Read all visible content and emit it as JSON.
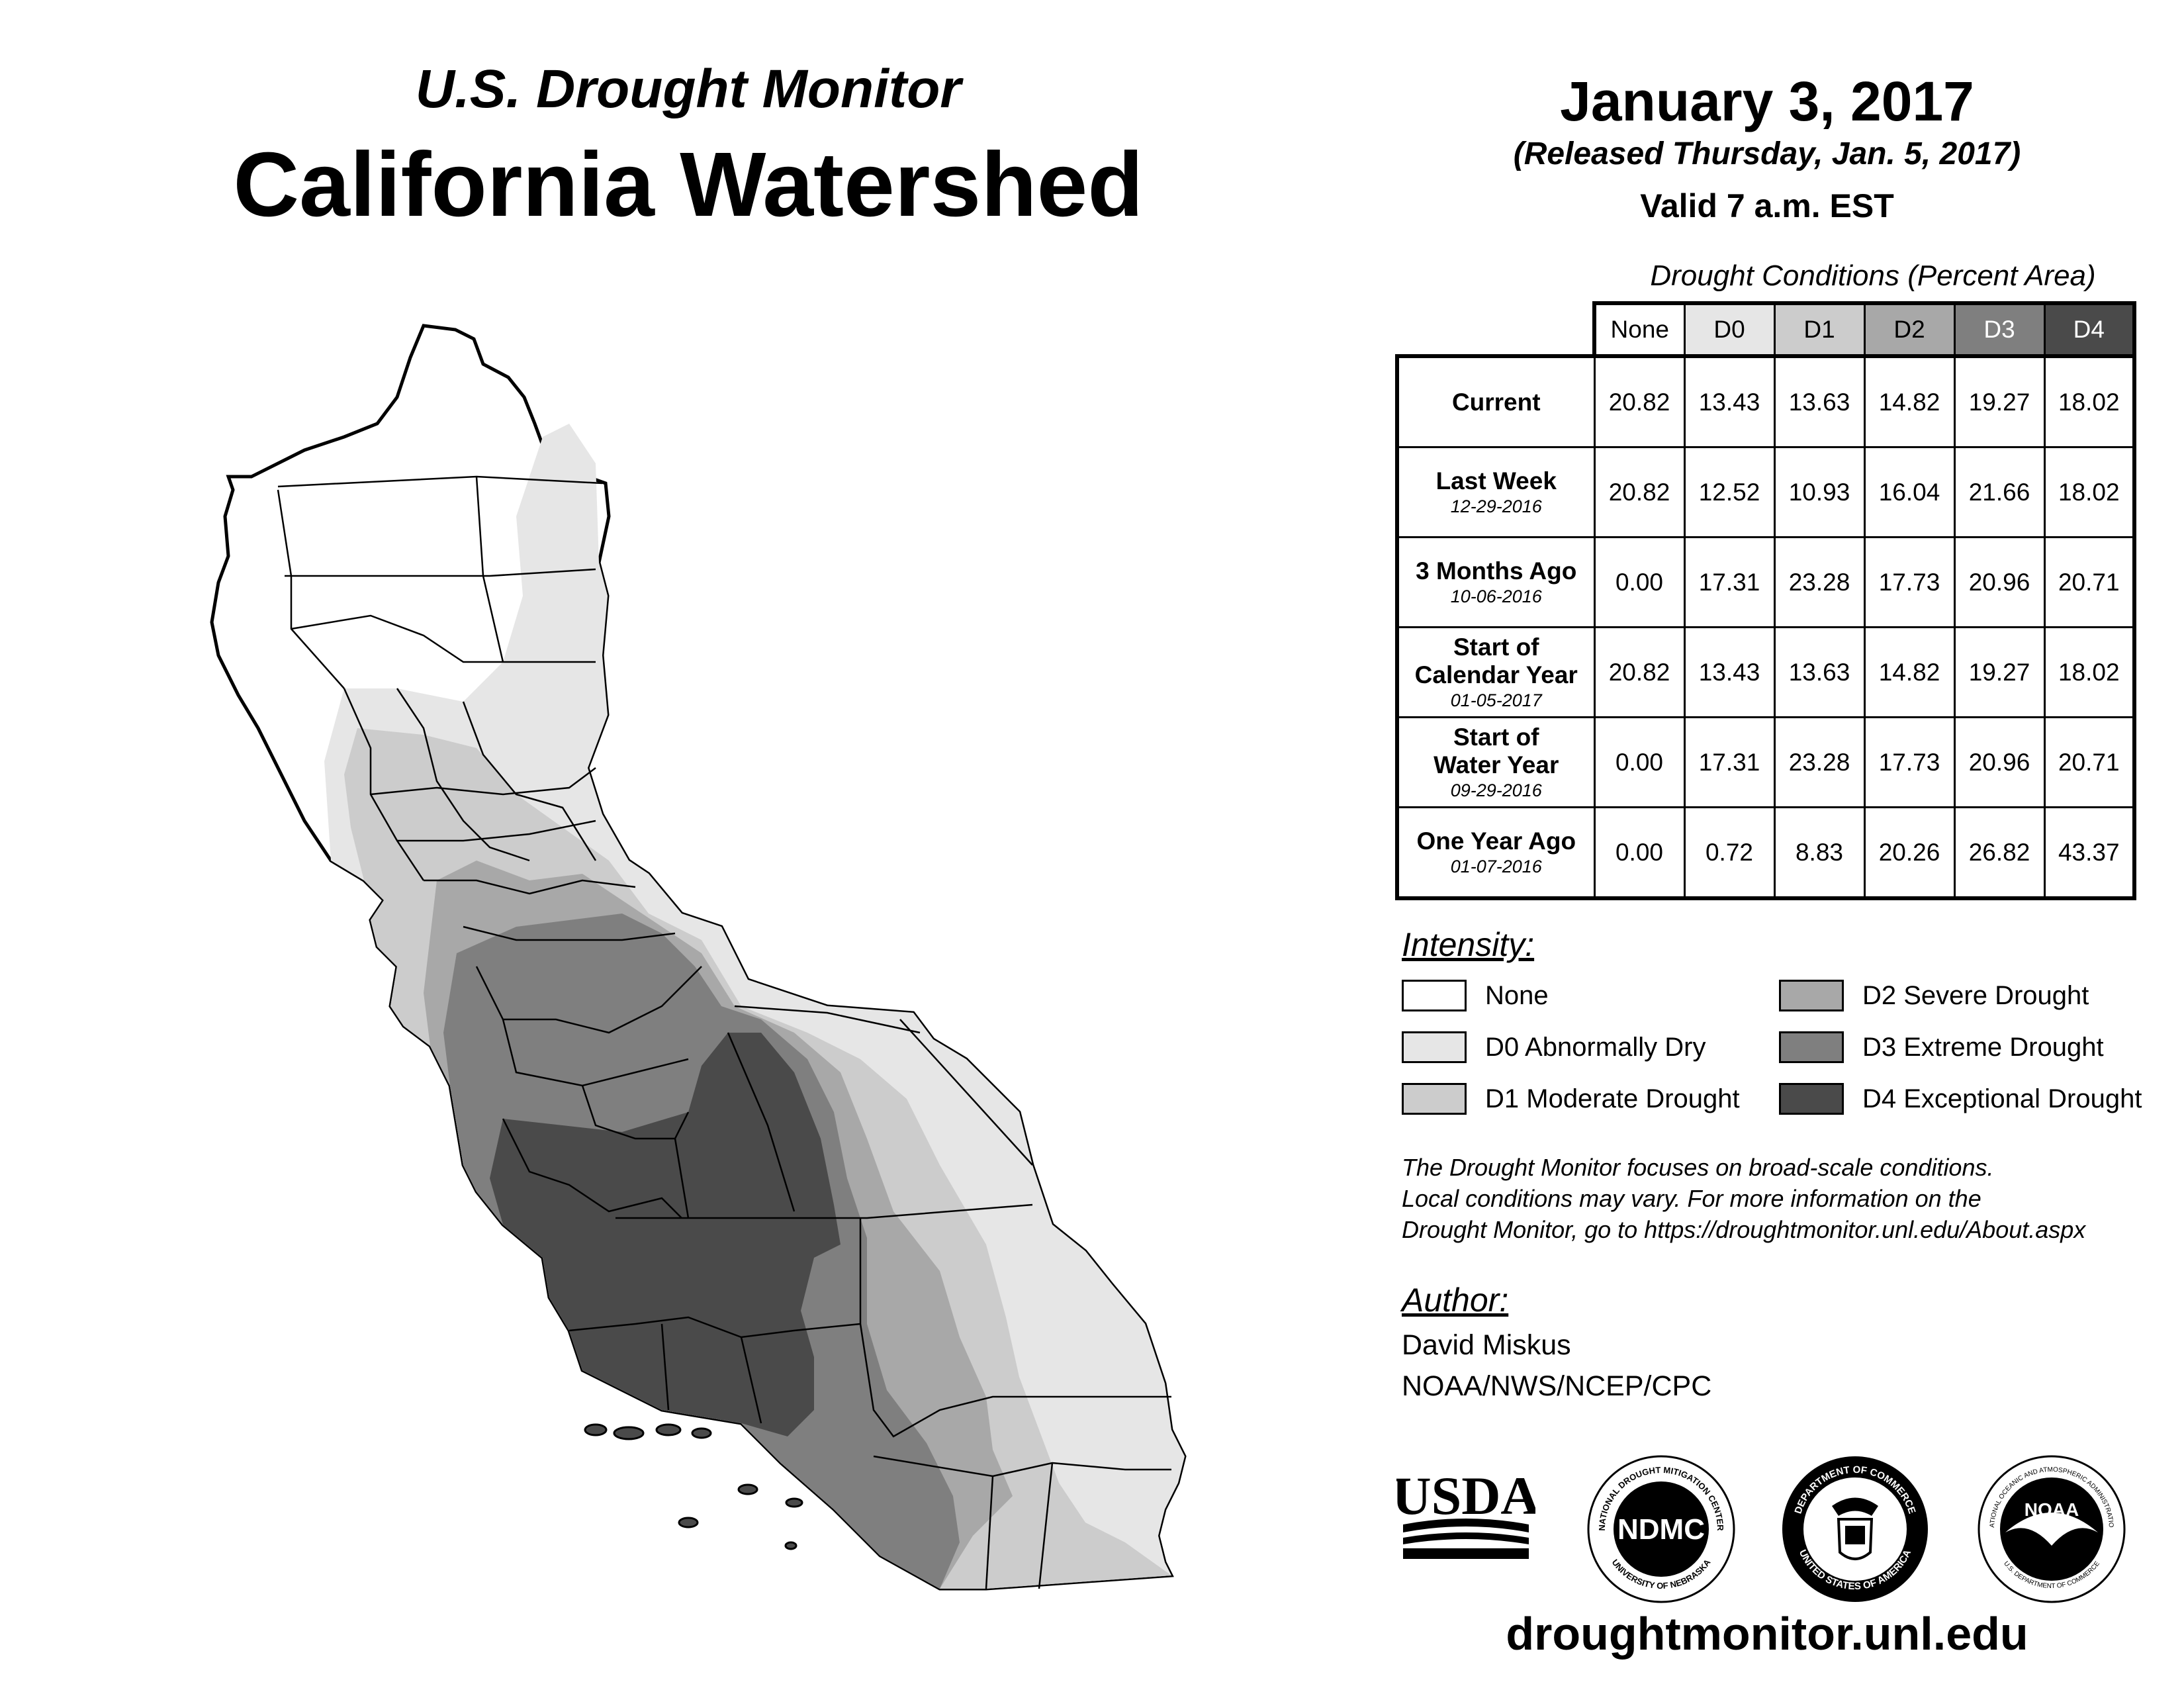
{
  "header": {
    "subtitle": "U.S. Drought Monitor",
    "title": "California Watershed"
  },
  "date_block": {
    "date": "January 3, 2017",
    "released": "(Released Thursday, Jan. 5, 2017)",
    "valid": "Valid 7 a.m. EST"
  },
  "conditions": {
    "caption": "Drought Conditions (Percent Area)",
    "columns": [
      "None",
      "D0",
      "D1",
      "D2",
      "D3",
      "D4"
    ],
    "column_fill": [
      "#ffffff",
      "#e6e6e6",
      "#cccccc",
      "#a8a8a8",
      "#7f7f7f",
      "#4a4a4a"
    ],
    "column_text": [
      "#000000",
      "#000000",
      "#000000",
      "#000000",
      "#ffffff",
      "#ffffff"
    ],
    "rows": [
      {
        "label": "Current",
        "label2": "",
        "date": "",
        "values": [
          "20.82",
          "13.43",
          "13.63",
          "14.82",
          "19.27",
          "18.02"
        ]
      },
      {
        "label": "Last Week",
        "label2": "",
        "date": "12-29-2016",
        "values": [
          "20.82",
          "12.52",
          "10.93",
          "16.04",
          "21.66",
          "18.02"
        ]
      },
      {
        "label": "3 Months Ago",
        "label2": "",
        "date": "10-06-2016",
        "values": [
          "0.00",
          "17.31",
          "23.28",
          "17.73",
          "20.96",
          "20.71"
        ]
      },
      {
        "label": "Start of",
        "label2": "Calendar Year",
        "date": "01-05-2017",
        "values": [
          "20.82",
          "13.43",
          "13.63",
          "14.82",
          "19.27",
          "18.02"
        ]
      },
      {
        "label": "Start of",
        "label2": "Water Year",
        "date": "09-29-2016",
        "values": [
          "0.00",
          "17.31",
          "23.28",
          "17.73",
          "20.96",
          "20.71"
        ]
      },
      {
        "label": "One Year Ago",
        "label2": "",
        "date": "01-07-2016",
        "values": [
          "0.00",
          "0.72",
          "8.83",
          "20.26",
          "26.82",
          "43.37"
        ]
      }
    ]
  },
  "intensity": {
    "heading": "Intensity:",
    "items": [
      {
        "label": "None",
        "color": "#ffffff"
      },
      {
        "label": "D0 Abnormally Dry",
        "color": "#e6e6e6"
      },
      {
        "label": "D1 Moderate Drought",
        "color": "#cccccc"
      },
      {
        "label": "D2 Severe Drought",
        "color": "#a8a8a8"
      },
      {
        "label": "D3 Extreme Drought",
        "color": "#7f7f7f"
      },
      {
        "label": "D4 Exceptional Drought",
        "color": "#4a4a4a"
      }
    ]
  },
  "note": {
    "line1": "The Drought Monitor focuses on broad-scale conditions.",
    "line2": "Local conditions may vary. For more information on the",
    "line3": "Drought Monitor, go to https://droughtmonitor.unl.edu/About.aspx"
  },
  "author": {
    "heading": "Author:",
    "name": "David Miskus",
    "org": "NOAA/NWS/NCEP/CPC"
  },
  "logos": {
    "usda": "USDA",
    "ndmc": "NDMC",
    "ndmc_ring_top": "NATIONAL DROUGHT MITIGATION CENTER",
    "ndmc_ring_bottom": "UNIVERSITY OF NEBRASKA",
    "doc_ring_top": "DEPARTMENT OF COMMERCE",
    "doc_ring_bottom": "UNITED STATES OF AMERICA",
    "noaa": "NOAA",
    "noaa_ring_top": "NATIONAL OCEANIC AND ATMOSPHERIC ADMINISTRATION",
    "noaa_ring_bottom": "U.S. DEPARTMENT OF COMMERCE"
  },
  "footer": {
    "url": "droughtmonitor.unl.edu"
  }
}
